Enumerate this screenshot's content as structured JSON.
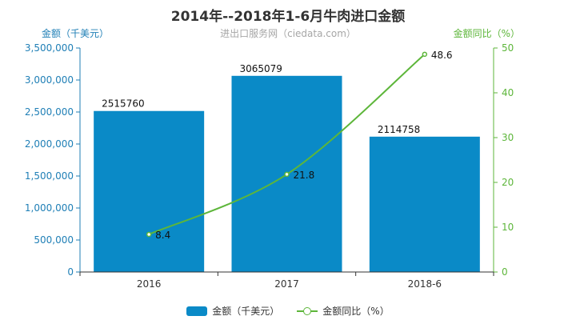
{
  "header": {
    "title": "2014年--2018年1-6月牛肉进口金额",
    "subtitle": "进出口服务网（ciedata.com）"
  },
  "colors": {
    "bar": "#0a8ac7",
    "line": "#5db63a",
    "left_axis": "#1f7fb6",
    "right_axis": "#5db63a"
  },
  "chart_data": {
    "type": "bar",
    "categories": [
      "2016",
      "2017",
      "2018-6"
    ],
    "series": [
      {
        "name": "金额（千美元）",
        "type": "bar",
        "axis": "left",
        "values": [
          2515760,
          3065079,
          2114758
        ],
        "labels": [
          "2515760",
          "3065079",
          "2114758"
        ]
      },
      {
        "name": "金额同比（%）",
        "type": "line",
        "axis": "right",
        "values": [
          8.4,
          21.8,
          48.6
        ],
        "labels": [
          "8.4",
          "21.8",
          "48.6"
        ]
      }
    ],
    "ylabel": "金额（千美元）",
    "ylabel_right": "金额同比（%）",
    "ylim": [
      0,
      3500000
    ],
    "ylim_right": [
      0,
      50
    ],
    "yticks": [
      "0",
      "500,000",
      "1,000,000",
      "1,500,000",
      "2,000,000",
      "2,500,000",
      "3,000,000",
      "3,500,000"
    ],
    "yticks_right": [
      "0",
      "10",
      "20",
      "30",
      "40",
      "50"
    ],
    "legend": "bottom",
    "grid": false
  }
}
